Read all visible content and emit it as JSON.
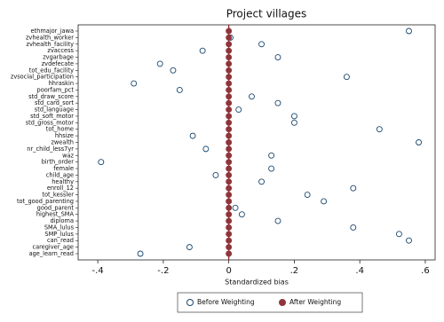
{
  "chart_data": {
    "type": "dot",
    "title": "Project villages",
    "xlabel": "Standardized bias",
    "categories": [
      "ethmajor_jawa",
      "zvhealth_worker",
      "zvhealth_facility",
      "zvaccess",
      "zvgarbage",
      "zvdefecate",
      "tot_edu_facility",
      "zvsocial_participation",
      "hhraskin",
      "poorfam_pct",
      "std_draw_score",
      "std_card_sort",
      "std_language",
      "std_soft_motor",
      "std_gross_motor",
      "tot_home",
      "hhsize",
      "zwealth",
      "nr_child_less7yr",
      "waz",
      "birth_order",
      "female",
      "child_age",
      "healthy",
      "enroll_12",
      "tot_kessler",
      "tot_good_parenting",
      "good_parent",
      "highest_SMA",
      "diploma",
      "SMA_lulus",
      "SMP_lulus",
      "can_read",
      "caregiver_age",
      "age_learn_read"
    ],
    "series": [
      {
        "name": "Before Weighting",
        "color": "#1a476f",
        "values": [
          0.55,
          0.005,
          0.1,
          -0.08,
          0.15,
          -0.21,
          -0.17,
          0.36,
          -0.29,
          -0.15,
          0.07,
          0.15,
          0.03,
          0.2,
          0.2,
          0.46,
          -0.11,
          0.58,
          -0.07,
          0.13,
          -0.39,
          0.13,
          -0.04,
          0.1,
          0.38,
          0.24,
          0.29,
          0.02,
          0.04,
          0.15,
          0.38,
          0.52,
          0.55,
          -0.12,
          -0.27
        ]
      },
      {
        "name": "After Weighting",
        "color": "#90353b",
        "values": [
          0,
          0,
          0,
          0,
          0,
          0,
          0,
          0,
          0,
          0,
          0,
          0,
          0,
          0,
          0,
          0,
          0,
          0,
          0,
          0,
          0,
          0,
          0,
          0,
          0,
          0,
          0,
          0,
          0,
          0,
          0,
          0,
          0,
          0,
          0
        ]
      }
    ],
    "xlim": [
      -0.46,
      0.63
    ],
    "xticks": [
      {
        "value": -0.4,
        "label": "-.4"
      },
      {
        "value": -0.2,
        "label": "-.2"
      },
      0,
      {
        "value": 0.2,
        "label": ".2"
      },
      {
        "value": 0.4,
        "label": ".4"
      },
      {
        "value": 0.6,
        "label": ".6"
      }
    ]
  }
}
